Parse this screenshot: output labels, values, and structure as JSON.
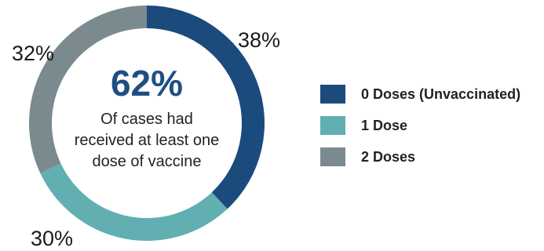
{
  "chart_data": {
    "type": "pie",
    "categories": [
      "0 Doses (Unvaccinated)",
      "1 Dose",
      "2 Doses"
    ],
    "values": [
      38,
      30,
      32
    ],
    "labels": [
      "38%",
      "30%",
      "32%"
    ],
    "colors": [
      "#1b4a7d",
      "#61afb1",
      "#7b8a8f"
    ],
    "center": {
      "value": "62%",
      "text_lines": [
        "Of cases had",
        "received at least one",
        "dose of vaccine"
      ]
    },
    "legend_placement": "right"
  }
}
